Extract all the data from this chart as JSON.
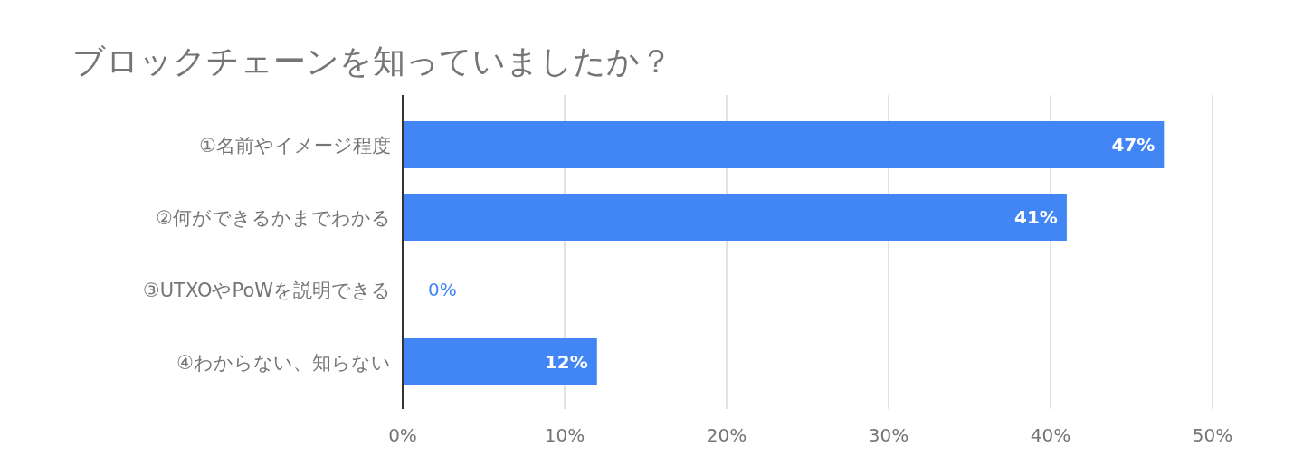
{
  "chart_data": {
    "type": "bar",
    "orientation": "horizontal",
    "title": "ブロックチェーンを知っていましたか？",
    "categories": [
      "①名前やイメージ程度",
      "②何ができるかまでわかる",
      "③UTXOやPoWを説明できる",
      "④わからない、知らない"
    ],
    "values": [
      47,
      41,
      0,
      12
    ],
    "value_labels": [
      "47%",
      "41%",
      "0%",
      "12%"
    ],
    "color": "#4285f4",
    "xlim": [
      0,
      50
    ],
    "xticks": [
      {
        "value": 0,
        "label": "0%"
      },
      {
        "value": 10,
        "label": "10%"
      },
      {
        "value": 20,
        "label": "20%"
      },
      {
        "value": 30,
        "label": "30%"
      },
      {
        "value": 40,
        "label": "40%"
      },
      {
        "value": 50,
        "label": "50%"
      }
    ],
    "grid": "x"
  }
}
